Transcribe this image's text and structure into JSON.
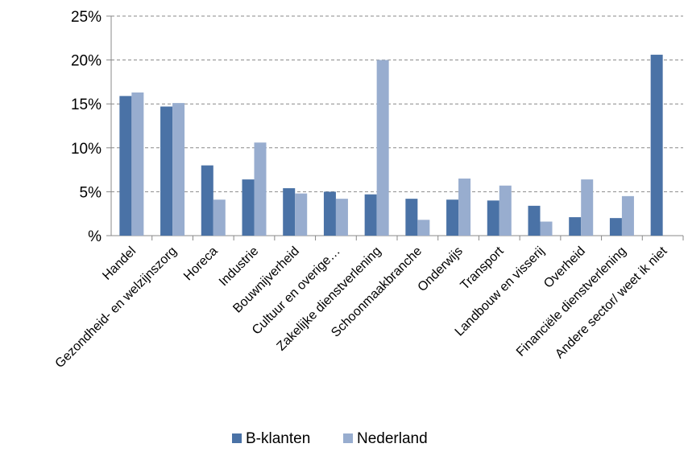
{
  "chart_data": {
    "type": "bar",
    "categories": [
      "Handel",
      "Gezondheid- en welzijnszorg",
      "Horeca",
      "Industrie",
      "Bouwnijverheid",
      "Cultuur en overige…",
      "Zakelijke dienstverlening",
      "Schoonmaakbranche",
      "Onderwijs",
      "Transport",
      "Landbouw en visserij",
      "Overheid",
      "Financiële dienstverlening",
      "Andere sector/ weet ik niet"
    ],
    "series": [
      {
        "name": "B-klanten",
        "color": "#4a72a6",
        "values": [
          15.9,
          14.7,
          8.0,
          6.4,
          5.4,
          5.0,
          4.7,
          4.2,
          4.1,
          4.0,
          3.4,
          2.1,
          2.0,
          20.6
        ]
      },
      {
        "name": "Nederland",
        "color": "#98adcf",
        "values": [
          16.3,
          15.1,
          4.1,
          10.6,
          4.8,
          4.2,
          20.0,
          1.8,
          6.5,
          5.7,
          1.6,
          6.4,
          4.5,
          null
        ]
      }
    ],
    "ylim": [
      0,
      25
    ],
    "yticks": [
      0,
      5,
      10,
      15,
      20,
      25
    ],
    "ytick_labels": [
      "%",
      "5%",
      "10%",
      "15%",
      "20%",
      "25%"
    ],
    "grid": true,
    "legend_position": "bottom",
    "title": "",
    "xlabel": "",
    "ylabel": ""
  }
}
